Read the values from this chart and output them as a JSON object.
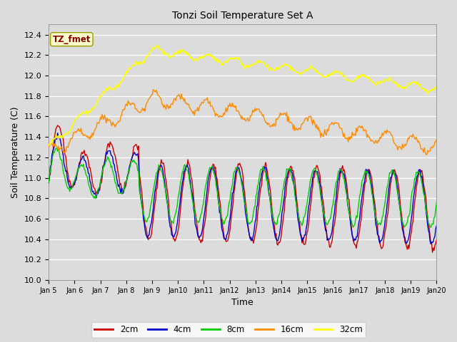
{
  "title": "Tonzi Soil Temperature Set A",
  "xlabel": "Time",
  "ylabel": "Soil Temperature (C)",
  "ylim": [
    10.0,
    12.5
  ],
  "yticks": [
    10.0,
    10.2,
    10.4,
    10.6,
    10.8,
    11.0,
    11.2,
    11.4,
    11.6,
    11.8,
    12.0,
    12.2,
    12.4
  ],
  "annotation_text": "TZ_fmet",
  "annotation_color": "#8B0000",
  "annotation_bg": "#FFFFCC",
  "bg_color": "#DCDCDC",
  "line_colors": {
    "2cm": "#CC0000",
    "4cm": "#0000CC",
    "8cm": "#00CC00",
    "16cm": "#FF8C00",
    "32cm": "#FFFF00"
  },
  "legend_labels": [
    "2cm",
    "4cm",
    "8cm",
    "16cm",
    "32cm"
  ],
  "num_points": 480
}
